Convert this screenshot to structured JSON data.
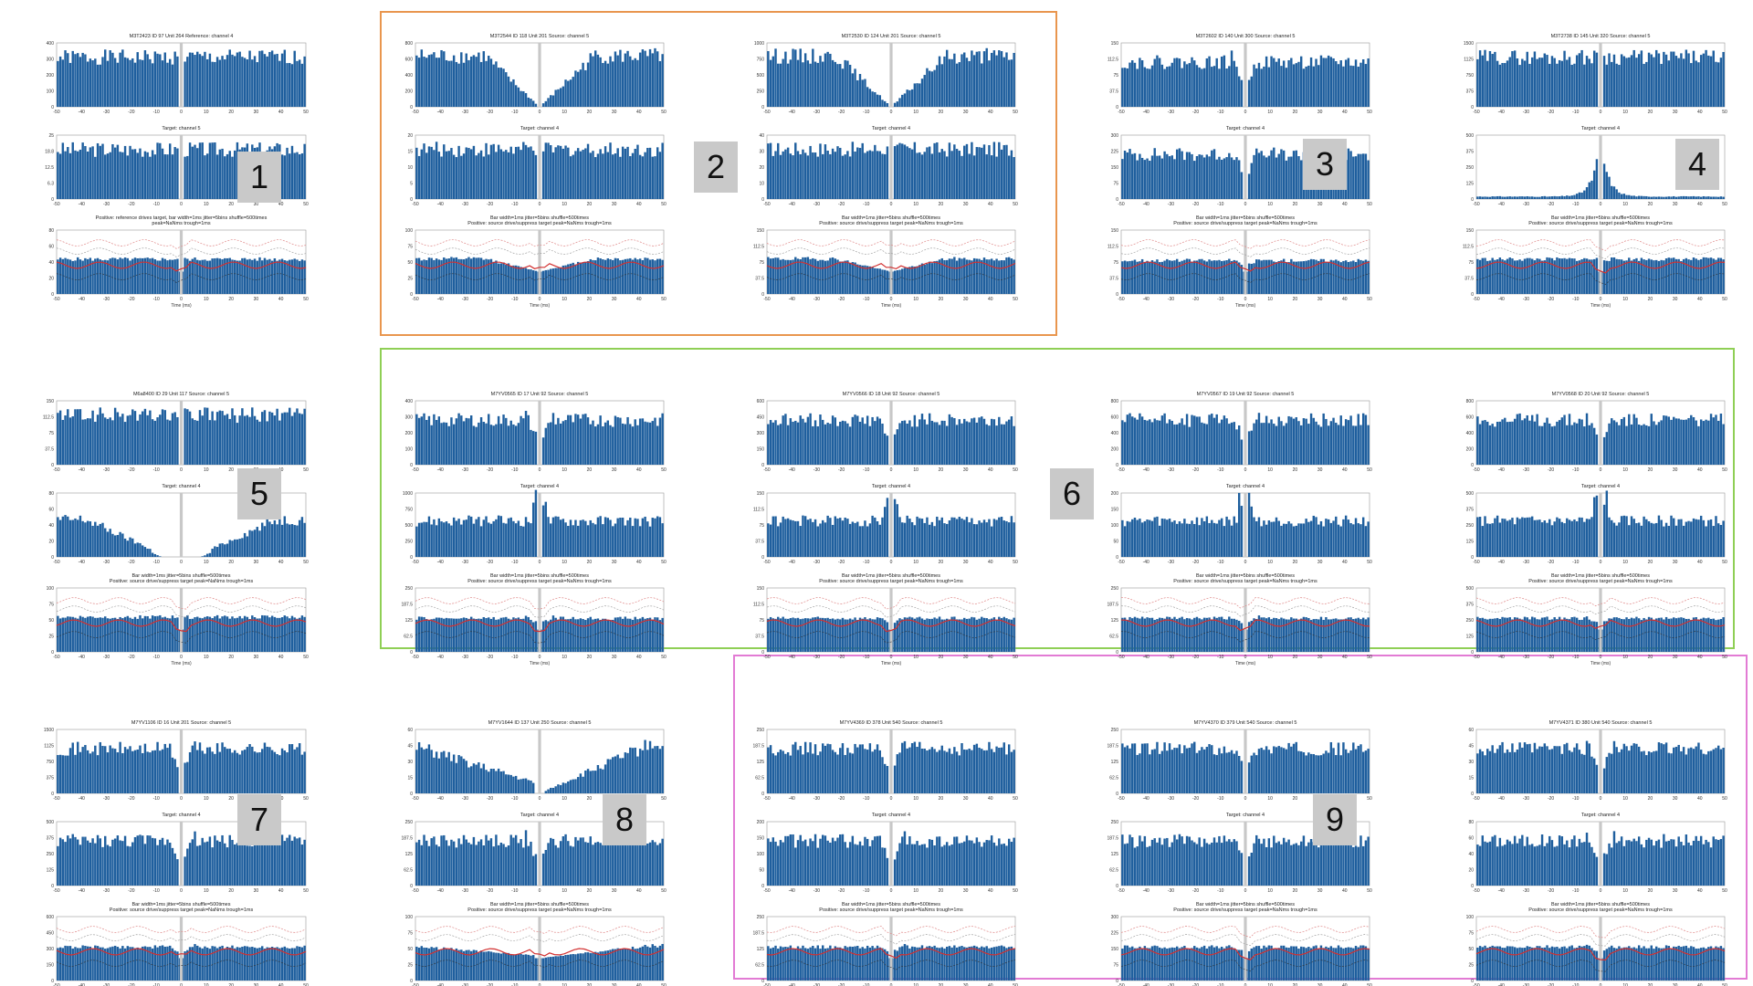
{
  "colors": {
    "bar": "#1f5f9e",
    "gap": "#c8c8c8",
    "baseline": "#d23030",
    "band": "#e08a8a",
    "tag_bg": "#c9c9c9"
  },
  "groups": [
    {
      "id": "orange",
      "color": "#e9964e"
    },
    {
      "id": "green",
      "color": "#8fcf55"
    },
    {
      "id": "pink",
      "color": "#e27bd4"
    }
  ],
  "tags": [
    "1",
    "2",
    "3",
    "4",
    "5",
    "6",
    "7",
    "8",
    "9"
  ],
  "chart_data": [
    {
      "id": "m1",
      "type": "bar",
      "shape": "flat_gap",
      "top_title": "M3T2423   ID 97   Unit 264   Reference: channel 4",
      "top_ylim": [
        0,
        400
      ],
      "mid_title": "Target: channel 5",
      "mid_ylim": [
        0,
        25
      ],
      "mid_shape": "flat_gap",
      "bottom_title": [
        "Positive: reference drives target, bar width=1ms  jitter=5bins  shuffle=500times",
        "peak=NaNms   trough=1ms"
      ],
      "bottom_ylim": [
        0,
        80
      ],
      "x_ticks": [
        -50,
        -40,
        -30,
        -20,
        -10,
        0,
        10,
        20,
        30,
        40,
        50
      ],
      "xlabel": "Time (ms)"
    },
    {
      "id": "m2a",
      "type": "bar",
      "shape": "v",
      "top_title": "M3T2544   ID 118   Unit 201   Source: channel 5",
      "top_ylim": [
        0,
        800
      ],
      "mid_title": "Target: channel 4",
      "mid_ylim": [
        0,
        20
      ],
      "mid_shape": "flat_gap",
      "bottom_title": [
        "Bar width=1ms  jitter=5bins  shuffle=500times",
        "Positive: source drive/suppress target   peak=NaNms   trough=1ms"
      ],
      "bottom_ylim": [
        0,
        100
      ],
      "x_ticks": [
        -50,
        -40,
        -30,
        -20,
        -10,
        0,
        10,
        20,
        30,
        40,
        50
      ],
      "xlabel": "Time (ms)"
    },
    {
      "id": "m2b",
      "type": "bar",
      "shape": "v",
      "top_title": "M3T2530   ID 124   Unit 201   Source: channel 5",
      "top_ylim": [
        0,
        1000
      ],
      "mid_title": "Target: channel 4",
      "mid_ylim": [
        0,
        40
      ],
      "mid_shape": "flat_gap",
      "bottom_title": [
        "Bar width=1ms  jitter=5bins  shuffle=500times",
        "Positive: source drive/suppress target   peak=NaNms   trough=1ms"
      ],
      "bottom_ylim": [
        0,
        150
      ],
      "x_ticks": [
        -50,
        -40,
        -30,
        -20,
        -10,
        0,
        10,
        20,
        30,
        40,
        50
      ],
      "xlabel": "Time (ms)"
    },
    {
      "id": "m3",
      "type": "bar",
      "shape": "notch",
      "top_title": "M3T2602   ID 140   Unit 300   Source: channel 5",
      "top_ylim": [
        0,
        150
      ],
      "mid_title": "Target: channel 4",
      "mid_ylim": [
        0,
        300
      ],
      "mid_shape": "notch",
      "bottom_title": [
        "Bar width=1ms  jitter=5bins  shuffle=500times",
        "Positive: source drive/suppress target   peak=NaNms   trough=1ms"
      ],
      "bottom_ylim": [
        0,
        150
      ],
      "x_ticks": [
        -50,
        -40,
        -30,
        -20,
        -10,
        0,
        10,
        20,
        30,
        40,
        50
      ],
      "xlabel": "Time (ms)"
    },
    {
      "id": "m4",
      "type": "bar",
      "shape": "flat_gap",
      "top_title": "M3T2738   ID 145   Unit 320   Source: channel 5",
      "top_ylim": [
        0,
        1500
      ],
      "mid_title": "Target: channel 4",
      "mid_ylim": [
        0,
        500
      ],
      "mid_shape": "peak",
      "bottom_title": [
        "Bar width=1ms  jitter=5bins  shuffle=500times",
        "Positive: source drive/suppress target   peak=NaNms   trough=1ms"
      ],
      "bottom_ylim": [
        0,
        150
      ],
      "x_ticks": [
        -50,
        -40,
        -30,
        -20,
        -10,
        0,
        10,
        20,
        30,
        40,
        50
      ],
      "xlabel": "Time (ms)"
    },
    {
      "id": "m5",
      "type": "bar",
      "shape": "flat_gap",
      "top_title": "M6a8400   ID 29   Unit 117   Source: channel 5",
      "top_ylim": [
        0,
        150
      ],
      "mid_title": "Target: channel 4",
      "mid_ylim": [
        0,
        80
      ],
      "mid_shape": "wide_v",
      "bottom_title": [
        "Bar width=1ms  jitter=5bins  shuffle=500times",
        "Positive: source drive/suppress target   peak=NaNms   trough=1ms"
      ],
      "bottom_ylim": [
        0,
        100
      ],
      "x_ticks": [
        -50,
        -40,
        -30,
        -20,
        -10,
        0,
        10,
        20,
        30,
        40,
        50
      ],
      "xlabel": "Time (ms)"
    },
    {
      "id": "m6a",
      "type": "bar",
      "shape": "notch",
      "top_title": "M7YV0565   ID 17   Unit 92   Source: channel 5",
      "top_ylim": [
        0,
        400
      ],
      "mid_title": "Target: channel 4",
      "mid_ylim": [
        0,
        1000
      ],
      "mid_shape": "flat_spike",
      "bottom_title": [
        "Bar width=1ms  jitter=5bins  shuffle=500times",
        "Positive: source drive/suppress target   peak=NaNms   trough=1ms"
      ],
      "bottom_ylim": [
        0,
        250
      ],
      "x_ticks": [
        -50,
        -40,
        -30,
        -20,
        -10,
        0,
        10,
        20,
        30,
        40,
        50
      ],
      "xlabel": "Time (ms)"
    },
    {
      "id": "m6b",
      "type": "bar",
      "shape": "notch",
      "top_title": "M7YV0566   ID 18   Unit 92   Source: channel 5",
      "top_ylim": [
        0,
        600
      ],
      "mid_title": "Target: channel 4",
      "mid_ylim": [
        0,
        150
      ],
      "mid_shape": "flat_spike",
      "bottom_title": [
        "Bar width=1ms  jitter=5bins  shuffle=500times",
        "Positive: source drive/suppress target   peak=NaNms   trough=1ms"
      ],
      "bottom_ylim": [
        0,
        150
      ],
      "x_ticks": [
        -50,
        -40,
        -30,
        -20,
        -10,
        0,
        10,
        20,
        30,
        40,
        50
      ],
      "xlabel": "Time (ms)"
    },
    {
      "id": "m6c",
      "type": "bar",
      "shape": "notch",
      "top_title": "M7YV0567   ID 19   Unit 92   Source: channel 5",
      "top_ylim": [
        0,
        800
      ],
      "mid_title": "Target: channel 4",
      "mid_ylim": [
        0,
        200
      ],
      "mid_shape": "flat_spike",
      "bottom_title": [
        "Bar width=1ms  jitter=5bins  shuffle=500times",
        "Positive: source drive/suppress target   peak=NaNms   trough=1ms"
      ],
      "bottom_ylim": [
        0,
        250
      ],
      "x_ticks": [
        -50,
        -40,
        -30,
        -20,
        -10,
        0,
        10,
        20,
        30,
        40,
        50
      ],
      "xlabel": "Time (ms)"
    },
    {
      "id": "m6d",
      "type": "bar",
      "shape": "notch",
      "top_title": "M7YV0568   ID 20   Unit 92   Source: channel 5",
      "top_ylim": [
        0,
        800
      ],
      "mid_title": "Target: channel 4",
      "mid_ylim": [
        0,
        500
      ],
      "mid_shape": "flat_spike",
      "bottom_title": [
        "Bar width=1ms  jitter=5bins  shuffle=500times",
        "Positive: source drive/suppress target   peak=NaNms   trough=1ms"
      ],
      "bottom_ylim": [
        0,
        500
      ],
      "x_ticks": [
        -50,
        -40,
        -30,
        -20,
        -10,
        0,
        10,
        20,
        30,
        40,
        50
      ],
      "xlabel": "Time (ms)"
    },
    {
      "id": "m7",
      "type": "bar",
      "shape": "notch",
      "top_title": "M7YV1106   ID 16   Unit 201   Source: channel 5",
      "top_ylim": [
        0,
        1500
      ],
      "mid_title": "Target: channel 4",
      "mid_ylim": [
        0,
        500
      ],
      "mid_shape": "notch",
      "bottom_title": [
        "Bar width=1ms  jitter=5bins  shuffle=500times",
        "Positive: source drive/suppress target   peak=NaNms   trough=1ms"
      ],
      "bottom_ylim": [
        0,
        600
      ],
      "x_ticks": [
        -50,
        -40,
        -30,
        -20,
        -10,
        0,
        10,
        20,
        30,
        40,
        50
      ],
      "xlabel": "Time (ms)"
    },
    {
      "id": "m8",
      "type": "bar",
      "shape": "v_right",
      "top_title": "M7YV1644   ID 137   Unit 250   Source: channel 5",
      "top_ylim": [
        0,
        60
      ],
      "mid_title": "Target: channel 4",
      "mid_ylim": [
        0,
        250
      ],
      "mid_shape": "notch",
      "bottom_title": [
        "Bar width=1ms  jitter=5bins  shuffle=500times",
        "Positive: source drive/suppress target   peak=NaNms   trough=1ms"
      ],
      "bottom_ylim": [
        0,
        100
      ],
      "x_ticks": [
        -50,
        -40,
        -30,
        -20,
        -10,
        0,
        10,
        20,
        30,
        40,
        50
      ],
      "xlabel": "Time (ms)"
    },
    {
      "id": "m9a",
      "type": "bar",
      "shape": "notch",
      "top_title": "M7YV4369   ID 378   Unit 540   Source: channel 5",
      "top_ylim": [
        0,
        250
      ],
      "mid_title": "Target: channel 4",
      "mid_ylim": [
        0,
        200
      ],
      "mid_shape": "notch",
      "bottom_title": [
        "Bar width=1ms  jitter=5bins  shuffle=500times",
        "Positive: source drive/suppress target   peak=NaNms   trough=1ms"
      ],
      "bottom_ylim": [
        0,
        250
      ],
      "x_ticks": [
        -50,
        -40,
        -30,
        -20,
        -10,
        0,
        10,
        20,
        30,
        40,
        50
      ],
      "xlabel": "Time (ms)"
    },
    {
      "id": "m9b",
      "type": "bar",
      "shape": "notch",
      "top_title": "M7YV4370   ID 379   Unit 540   Source: channel 5",
      "top_ylim": [
        0,
        250
      ],
      "mid_title": "Target: channel 4",
      "mid_ylim": [
        0,
        250
      ],
      "mid_shape": "notch",
      "bottom_title": [
        "Bar width=1ms  jitter=5bins  shuffle=500times",
        "Positive: source drive/suppress target   peak=NaNms   trough=1ms"
      ],
      "bottom_ylim": [
        0,
        300
      ],
      "x_ticks": [
        -50,
        -40,
        -30,
        -20,
        -10,
        0,
        10,
        20,
        30,
        40,
        50
      ],
      "xlabel": "Time (ms)"
    },
    {
      "id": "m9c",
      "type": "bar",
      "shape": "notch",
      "top_title": "M7YV4371   ID 380   Unit 540   Source: channel 5",
      "top_ylim": [
        0,
        60
      ],
      "mid_title": "Target: channel 4",
      "mid_ylim": [
        0,
        80
      ],
      "mid_shape": "notch",
      "bottom_title": [
        "Bar width=1ms  jitter=5bins  shuffle=500times",
        "Positive: source drive/suppress target   peak=NaNms   trough=1ms"
      ],
      "bottom_ylim": [
        0,
        100
      ],
      "x_ticks": [
        -50,
        -40,
        -30,
        -20,
        -10,
        0,
        10,
        20,
        30,
        40,
        50
      ],
      "xlabel": "Time (ms)"
    }
  ]
}
